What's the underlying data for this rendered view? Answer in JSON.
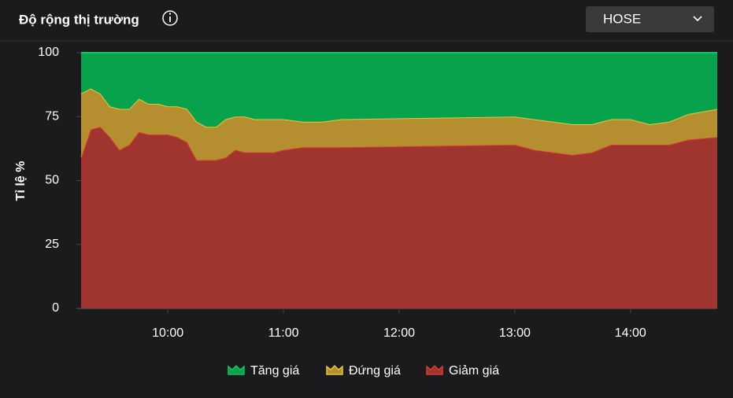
{
  "header": {
    "title": "Độ rộng thị trường",
    "selector": "HOSE"
  },
  "chart_data": {
    "type": "stacked-area",
    "y_label": "Tỉ lệ %",
    "x": [
      "09:15",
      "09:20",
      "09:25",
      "09:30",
      "09:35",
      "09:40",
      "09:45",
      "09:50",
      "09:55",
      "10:00",
      "10:05",
      "10:10",
      "10:15",
      "10:20",
      "10:25",
      "10:30",
      "10:35",
      "10:40",
      "10:45",
      "10:50",
      "10:55",
      "11:00",
      "11:10",
      "11:20",
      "11:30",
      "13:00",
      "13:10",
      "13:20",
      "13:30",
      "13:40",
      "13:50",
      "14:00",
      "14:10",
      "14:20",
      "14:30",
      "14:45"
    ],
    "xlim": [
      "09:15",
      "14:45"
    ],
    "xticks": [
      "10:00",
      "11:00",
      "12:00",
      "13:00",
      "14:00"
    ],
    "ylim": [
      0,
      100
    ],
    "yticks": [
      0,
      25,
      50,
      75,
      100
    ],
    "series": [
      {
        "name": "Tăng giá",
        "color": "#08a24d",
        "line_color": "#19c25f",
        "values": [
          16,
          14,
          16,
          21,
          22,
          22,
          18,
          20,
          20,
          21,
          21,
          22,
          27,
          29,
          29,
          26,
          25,
          25,
          26,
          26,
          26,
          26,
          27,
          27,
          26,
          25,
          26,
          27,
          28,
          28,
          26,
          26,
          28,
          27,
          24,
          22
        ]
      },
      {
        "name": "Đứng giá",
        "color": "#b58f2f",
        "line_color": "#e8c43e",
        "values": [
          25,
          16,
          13,
          12,
          16,
          14,
          13,
          12,
          12,
          11,
          12,
          13,
          15,
          13,
          13,
          15,
          13,
          14,
          13,
          13,
          13,
          12,
          10,
          10,
          11,
          11,
          12,
          12,
          12,
          11,
          10,
          10,
          8,
          9,
          10,
          11
        ]
      },
      {
        "name": "Giảm giá",
        "color": "#a03530",
        "line_color": "#d83a36",
        "values": [
          59,
          70,
          71,
          67,
          62,
          64,
          69,
          68,
          68,
          68,
          67,
          65,
          58,
          58,
          58,
          59,
          62,
          61,
          61,
          61,
          61,
          62,
          63,
          63,
          63,
          64,
          62,
          61,
          60,
          61,
          64,
          64,
          64,
          64,
          66,
          67
        ]
      }
    ]
  }
}
